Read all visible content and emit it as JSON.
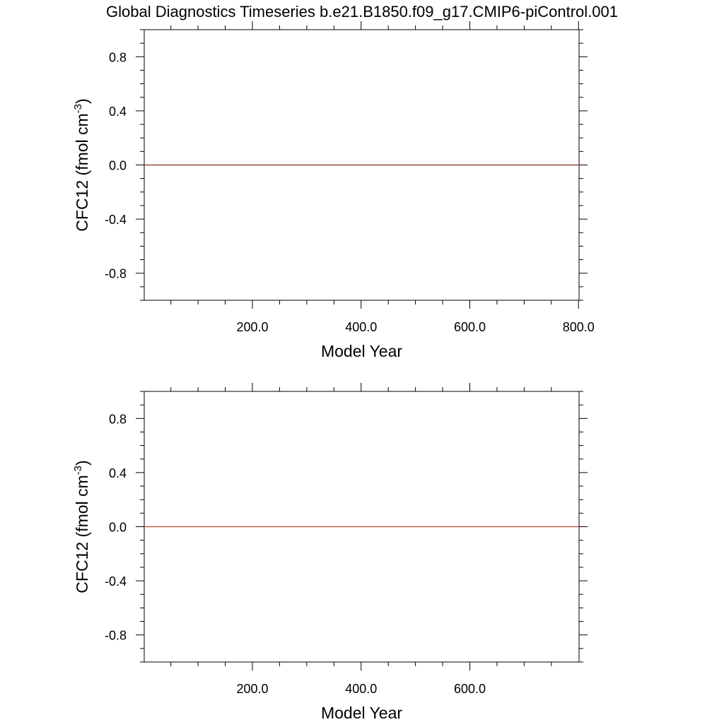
{
  "title": "Global Diagnostics Timeseries b.e21.B1850.f09_g17.CMIP6-piControl.001",
  "chart_data": [
    {
      "type": "line",
      "xlabel": "Model Year",
      "ylabel": "CFC12 (fmol cm",
      "ylabel_sup": "-3",
      "ylabel_end": ")",
      "xlim": [
        1,
        801
      ],
      "ylim": [
        -1.0,
        1.0
      ],
      "x_ticks": [
        200,
        400,
        600,
        800
      ],
      "x_tick_labels": [
        "200.0",
        "400.0",
        "600.0",
        "800.0"
      ],
      "y_ticks": [
        0.8,
        0.4,
        0.0,
        -0.4,
        -0.8
      ],
      "y_tick_labels": [
        "0.8",
        "0.4",
        "0.0",
        "-0.4",
        "-0.8"
      ],
      "series": [
        {
          "x": [
            1,
            801
          ],
          "values": [
            0.0,
            0.0
          ],
          "color": "#8b2d1c"
        }
      ]
    },
    {
      "type": "line",
      "xlabel": "Model Year",
      "ylabel": "CFC12 (fmol cm",
      "ylabel_sup": "-3",
      "ylabel_end": ")",
      "xlim": [
        1,
        801
      ],
      "ylim": [
        -1.0,
        1.0
      ],
      "x_ticks": [
        200,
        400,
        600
      ],
      "x_tick_labels": [
        "200.0",
        "400.0",
        "600.0"
      ],
      "y_ticks": [
        0.8,
        0.4,
        0.0,
        -0.4,
        -0.8
      ],
      "y_tick_labels": [
        "0.8",
        "0.4",
        "0.0",
        "-0.4",
        "-0.8"
      ],
      "series": [
        {
          "x": [
            1,
            801
          ],
          "values": [
            0.0,
            0.0
          ],
          "color": "#b2452a"
        }
      ]
    }
  ]
}
